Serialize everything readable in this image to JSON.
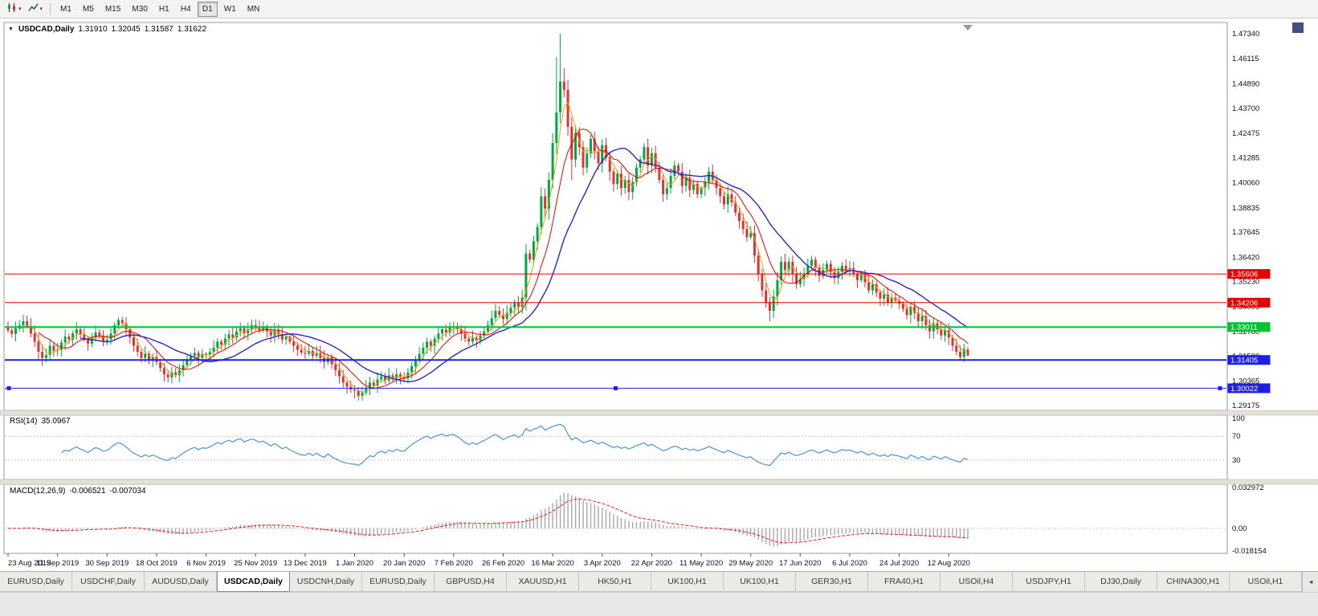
{
  "toolbar": {
    "periods": [
      "M1",
      "M5",
      "M15",
      "M30",
      "H1",
      "H4",
      "D1",
      "W1",
      "MN"
    ],
    "active_period": "D1",
    "dropdown_icon": "▾"
  },
  "header": {
    "dropdown_icon": "▼",
    "symbol": "USDCAD,Daily",
    "open": "1.31910",
    "high": "1.32045",
    "low": "1.31587",
    "close": "1.31622"
  },
  "chart_data": {
    "type": "candlestick",
    "symbol": "USDCAD",
    "timeframe": "Daily",
    "colors": {
      "up": "#00a843",
      "down": "#e03232",
      "background": "#ffffff",
      "border": "#999999"
    },
    "y_axis": {
      "min": 1.29175,
      "max": 1.4734,
      "ticks": [
        "1.47340",
        "1.46115",
        "1.44890",
        "1.43700",
        "1.42475",
        "1.41285",
        "1.40060",
        "1.38835",
        "1.37645",
        "1.36420",
        "1.35230",
        "1.34005",
        "1.32780",
        "1.31590",
        "1.30365",
        "1.29175"
      ]
    },
    "x_labels": [
      "23 Aug 2019",
      "11 Sep 2019",
      "30 Sep 2019",
      "18 Oct 2019",
      "6 Nov 2019",
      "25 Nov 2019",
      "13 Dec 2019",
      "1 Jan 2020",
      "20 Jan 2020",
      "7 Feb 2020",
      "26 Feb 2020",
      "16 Mar 2020",
      "3 Apr 2020",
      "22 Apr 2020",
      "11 May 2020",
      "29 May 2020",
      "17 Jun 2020",
      "6 Jul 2020",
      "24 Jul 2020",
      "12 Aug 2020"
    ],
    "x_label_indices": [
      0,
      13,
      26,
      39,
      52,
      65,
      78,
      91,
      104,
      117,
      130,
      143,
      156,
      169,
      182,
      195,
      208,
      221,
      234,
      247
    ],
    "closes": [
      1.3285,
      1.3268,
      1.3295,
      1.331,
      1.333,
      1.3305,
      1.327,
      1.323,
      1.318,
      1.315,
      1.3165,
      1.321,
      1.3185,
      1.319,
      1.3225,
      1.3255,
      1.324,
      1.327,
      1.329,
      1.3265,
      1.3245,
      1.322,
      1.325,
      1.3275,
      1.326,
      1.323,
      1.324,
      1.327,
      1.331,
      1.3335,
      1.332,
      1.329,
      1.325,
      1.321,
      1.318,
      1.315,
      1.317,
      1.314,
      1.3155,
      1.313,
      1.31,
      1.307,
      1.3055,
      1.308,
      1.3065,
      1.309,
      1.3115,
      1.314,
      1.316,
      1.3175,
      1.315,
      1.317,
      1.3165,
      1.318,
      1.32,
      1.323,
      1.3215,
      1.3245,
      1.3265,
      1.325,
      1.328,
      1.3295,
      1.327,
      1.329,
      1.331,
      1.33,
      1.3285,
      1.33,
      1.328,
      1.326,
      1.3285,
      1.3265,
      1.324,
      1.3255,
      1.323,
      1.321,
      1.319,
      1.3175,
      1.317,
      1.3185,
      1.316,
      1.3175,
      1.315,
      1.313,
      1.3155,
      1.312,
      1.309,
      1.306,
      1.303,
      1.301,
      1.2995,
      1.299,
      1.2965,
      1.298,
      1.3005,
      1.303,
      1.3015,
      1.3045,
      1.306,
      1.304,
      1.3065,
      1.305,
      1.307,
      1.3055,
      1.305,
      1.308,
      1.311,
      1.314,
      1.317,
      1.32,
      1.323,
      1.321,
      1.3245,
      1.327,
      1.329,
      1.3275,
      1.33,
      1.3305,
      1.329,
      1.327,
      1.3245,
      1.323,
      1.325,
      1.3235,
      1.326,
      1.328,
      1.331,
      1.3345,
      1.338,
      1.336,
      1.334,
      1.337,
      1.3395,
      1.342,
      1.34,
      1.3445,
      1.366,
      1.363,
      1.372,
      1.379,
      1.394,
      1.388,
      1.402,
      1.42,
      1.435,
      1.45,
      1.446,
      1.428,
      1.412,
      1.425,
      1.418,
      1.408,
      1.415,
      1.422,
      1.416,
      1.41,
      1.419,
      1.413,
      1.406,
      1.4,
      1.405,
      1.398,
      1.402,
      1.396,
      1.401,
      1.408,
      1.412,
      1.418,
      1.409,
      1.415,
      1.408,
      1.402,
      1.395,
      1.398,
      1.404,
      1.409,
      1.406,
      1.399,
      1.403,
      1.397,
      1.4,
      1.395,
      1.398,
      1.401,
      1.406,
      1.402,
      1.398,
      1.394,
      1.39,
      1.395,
      1.391,
      1.386,
      1.382,
      1.378,
      1.374,
      1.376,
      1.365,
      1.356,
      1.348,
      1.342,
      1.338,
      1.345,
      1.353,
      1.362,
      1.358,
      1.362,
      1.356,
      1.351,
      1.3535,
      1.356,
      1.36,
      1.363,
      1.359,
      1.355,
      1.358,
      1.361,
      1.357,
      1.354,
      1.357,
      1.36,
      1.358,
      1.359,
      1.356,
      1.353,
      1.3555,
      1.352,
      1.348,
      1.351,
      1.347,
      1.344,
      1.346,
      1.342,
      1.3445,
      1.343,
      1.3415,
      1.339,
      1.336,
      1.34,
      1.337,
      1.333,
      1.3355,
      1.331,
      1.328,
      1.332,
      1.329,
      1.326,
      1.3285,
      1.325,
      1.321,
      1.318,
      1.3155,
      1.3195,
      1.31622
    ],
    "ohlc_overrides": [
      {
        "i": 91,
        "l": 1.2952
      },
      {
        "i": 144,
        "h": 1.462
      },
      {
        "i": 145,
        "h": 1.4734
      },
      {
        "i": 146,
        "h": 1.4566
      },
      {
        "i": 148,
        "l": 1.4018
      },
      {
        "i": 200,
        "l": 1.333
      },
      {
        "i": 252,
        "o": 1.3191,
        "h": 1.32045,
        "l": 1.31587,
        "c": 1.31622
      }
    ],
    "current_bar": {
      "open": 1.3191,
      "high": 1.32045,
      "low": 1.31587,
      "close": 1.31622
    },
    "moving_averages": [
      {
        "period": 4,
        "color": "#d9a40a",
        "width": 1
      },
      {
        "period": 9,
        "color": "#e60000",
        "width": 1
      },
      {
        "period": 20,
        "color": "#2828c8",
        "width": 1.4
      }
    ],
    "horizontal_lines": [
      {
        "price": 1.35606,
        "label": "1.35606",
        "color": "#e60000",
        "width": 1,
        "handles": false
      },
      {
        "price": 1.34206,
        "label": "1.34206",
        "color": "#e60000",
        "width": 1,
        "handles": false
      },
      {
        "price": 1.33011,
        "label": "1.33011",
        "color": "#00c232",
        "width": 2,
        "handles": false
      },
      {
        "price": 1.31405,
        "label": "1.31405",
        "color": "#1e1ee6",
        "width": 2,
        "handles": false
      },
      {
        "price": 1.30022,
        "label": "1.30022",
        "color": "#1e1ee6",
        "width": 1,
        "handles": true
      }
    ],
    "indicators": {
      "rsi": {
        "name": "RSI(14)",
        "period": 14,
        "value": "35.0967",
        "color": "#4a96d2",
        "range": [
          0,
          100
        ],
        "levels": [
          {
            "value": 100,
            "label": "100"
          },
          {
            "value": 70,
            "label": "70"
          },
          {
            "value": 30,
            "label": "30"
          }
        ]
      },
      "macd": {
        "name": "MACD(12,26,9)",
        "fast": 12,
        "slow": 26,
        "signal": 9,
        "value": "-0.006521",
        "signal_value": "-0.007034",
        "histogram_color": "#a8a8a8",
        "signal_color": "#e62020",
        "range": [
          -0.018154,
          0.032972
        ],
        "axis_ticks": [
          {
            "value": 0.032972,
            "label": "0.032972"
          },
          {
            "value": 0,
            "label": "0.00"
          },
          {
            "value": -0.018154,
            "label": "-0.018154"
          }
        ]
      }
    }
  },
  "tabbar": {
    "tabs": [
      "EURUSD,Daily",
      "USDCHF,Daily",
      "AUDUSD,Daily",
      "USDCAD,Daily",
      "USDCNH,Daily",
      "EURUSD,Daily",
      "GBPUSD,H4",
      "XAUUSD,H1",
      "HK50,H1",
      "UK100,H1",
      "UK100,H1",
      "GER30,H1",
      "FRA40,H1",
      "USOil,H4",
      "USDJPY,H1",
      "DJ30,Daily",
      "CHINA300,H1",
      "USOil,H1"
    ],
    "active_index": 3,
    "scroll_icon": "◄"
  }
}
